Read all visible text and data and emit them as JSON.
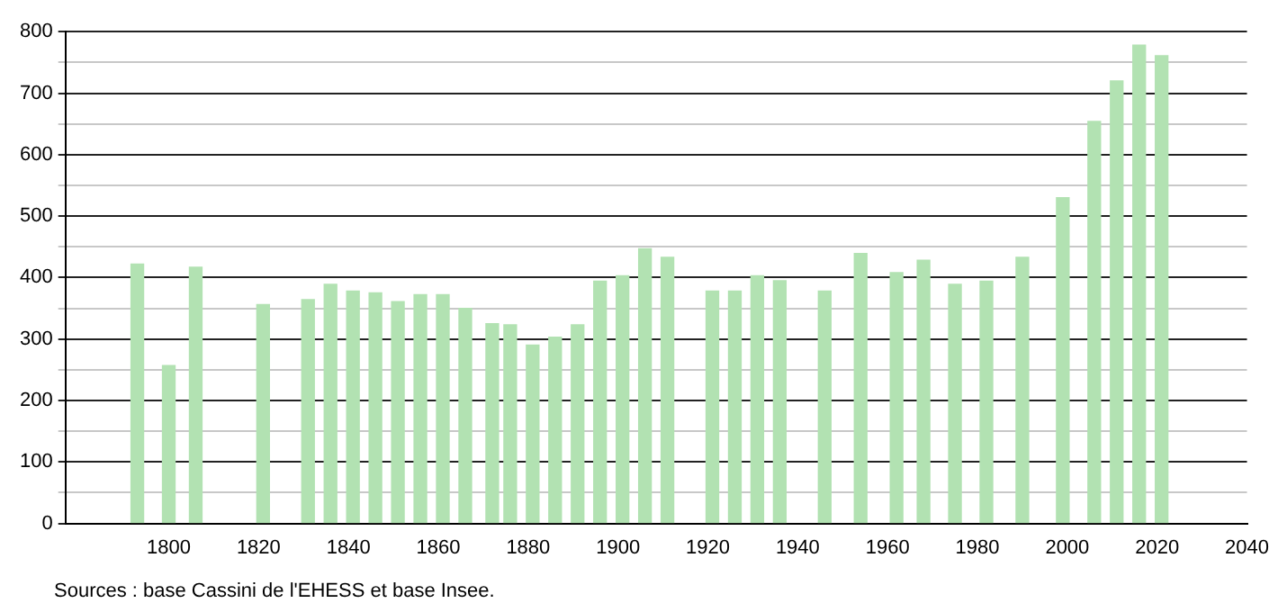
{
  "chart_data": {
    "type": "bar",
    "x": [
      1793,
      1800,
      1806,
      1821,
      1831,
      1836,
      1841,
      1846,
      1851,
      1856,
      1861,
      1866,
      1872,
      1876,
      1881,
      1886,
      1891,
      1896,
      1901,
      1906,
      1911,
      1921,
      1926,
      1931,
      1936,
      1946,
      1954,
      1962,
      1968,
      1975,
      1982,
      1990,
      1999,
      2006,
      2011,
      2016,
      2021
    ],
    "series": [
      {
        "color": "#b2e2b2",
        "values": [
          422,
          257,
          417,
          356,
          364,
          389,
          378,
          375,
          361,
          372,
          372,
          350,
          325,
          323,
          290,
          303,
          323,
          394,
          403,
          447,
          433,
          378,
          378,
          403,
          395,
          378,
          439,
          408,
          428,
          389,
          394,
          433,
          530,
          654,
          720,
          778,
          761
        ]
      }
    ],
    "xlim": [
      1777,
      2040
    ],
    "xticks": [
      1800,
      1820,
      1840,
      1860,
      1880,
      1900,
      1920,
      1940,
      1960,
      1980,
      2000,
      2020,
      2040
    ],
    "ylim": [
      0,
      800
    ],
    "yticks": [
      0,
      {
        "value": 50,
        "label": null
      },
      100,
      {
        "value": 150,
        "label": null
      },
      200,
      {
        "value": 250,
        "label": null
      },
      300,
      {
        "value": 350,
        "label": null
      },
      400,
      {
        "value": 450,
        "label": null
      },
      500,
      {
        "value": 550,
        "label": null
      },
      600,
      {
        "value": 650,
        "label": null
      },
      700,
      {
        "value": 750,
        "label": null
      },
      800
    ],
    "grid": "y",
    "legend": false,
    "annotations": [
      "Sources : base Cassini de l'EHESS et base Insee."
    ]
  }
}
